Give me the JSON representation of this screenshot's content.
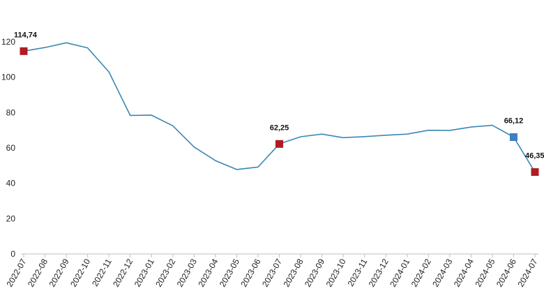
{
  "chart_data": {
    "type": "line",
    "title": "",
    "xlabel": "",
    "ylabel": "",
    "ylim": [
      0,
      120
    ],
    "yticks": [
      0,
      20,
      40,
      60,
      80,
      100,
      120
    ],
    "grid": false,
    "legend": "none",
    "categories": [
      "2022-07",
      "2022-08",
      "2022-09",
      "2022-10",
      "2022-11",
      "2022-12",
      "2023-01",
      "2023-02",
      "2023-03",
      "2023-04",
      "2023-05",
      "2023-06",
      "2023-07",
      "2023-08",
      "2023-09",
      "2023-10",
      "2023-11",
      "2023-12",
      "2024-01",
      "2024-02",
      "2024-03",
      "2024-04",
      "2024-05",
      "2024-06",
      "2024-07"
    ],
    "series": [
      {
        "color": "#3a87b5",
        "values": [
          114.74,
          116.8,
          119.5,
          116.6,
          103.0,
          78.4,
          78.5,
          72.5,
          60.5,
          52.8,
          47.8,
          49.2,
          62.25,
          66.3,
          67.8,
          65.8,
          66.4,
          67.2,
          67.8,
          70.0,
          69.9,
          71.8,
          72.8,
          66.12,
          46.35
        ]
      }
    ],
    "annotations": [
      {
        "index": 0,
        "label": "114,74",
        "marker_color": "#b01c22"
      },
      {
        "index": 12,
        "label": "62,25",
        "marker_color": "#b01c22"
      },
      {
        "index": 23,
        "label": "66,12",
        "marker_color": "#3d7fc1"
      },
      {
        "index": 24,
        "label": "46,35",
        "marker_color": "#b01c22"
      }
    ],
    "axis_color": "#bfbfbf"
  }
}
